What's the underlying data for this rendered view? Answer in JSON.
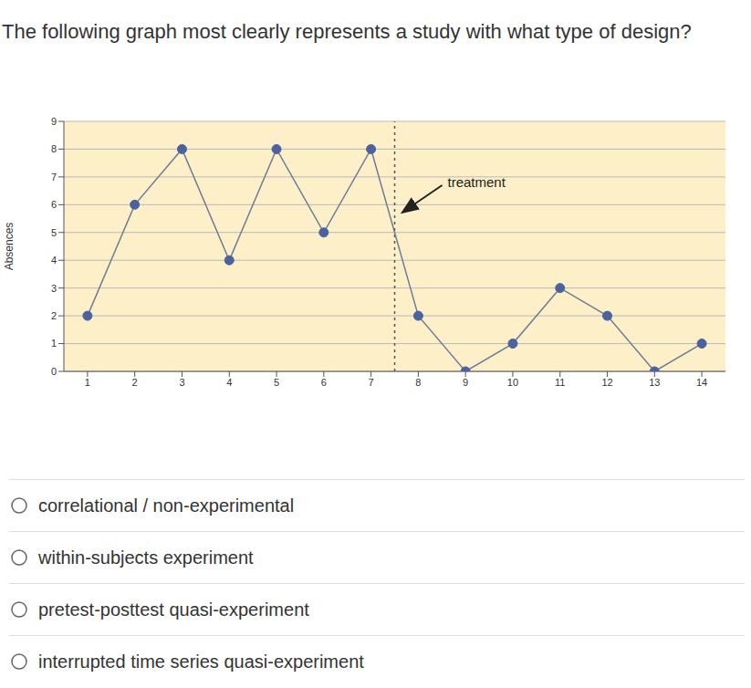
{
  "question": "The following graph most clearly represents a study with what type of design?",
  "chart_data": {
    "type": "line",
    "x": [
      1,
      2,
      3,
      4,
      5,
      6,
      7,
      8,
      9,
      10,
      11,
      12,
      13,
      14
    ],
    "values": [
      2,
      6,
      8,
      4,
      8,
      5,
      8,
      2,
      0,
      1,
      3,
      2,
      0,
      1
    ],
    "xlim": [
      0.5,
      14.5
    ],
    "xticks": [
      1,
      2,
      3,
      4,
      5,
      6,
      7,
      8,
      9,
      10,
      11,
      12,
      13,
      14
    ],
    "ylim": [
      0,
      9
    ],
    "yticks": [
      0,
      1,
      2,
      3,
      4,
      5,
      6,
      7,
      8,
      9
    ],
    "y_label": "Absences",
    "color": "#4a63a0",
    "marker": "circle",
    "grid": true,
    "annotations": [
      {
        "text": "treatment",
        "x": 7.5
      }
    ]
  },
  "options": [
    "correlational / non-experimental",
    "within-subjects experiment",
    "pretest-posttest quasi-experiment",
    "interrupted time series quasi-experiment"
  ]
}
